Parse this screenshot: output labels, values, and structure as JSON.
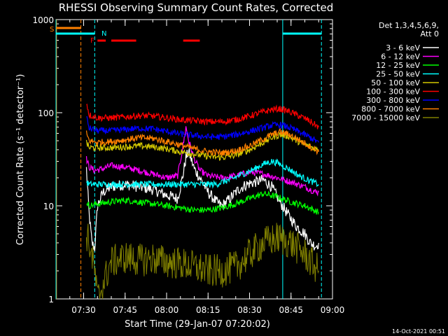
{
  "chart_data": {
    "type": "line",
    "title": "RHESSI Observing Summary Count Rates, Corrected",
    "xlabel": "Start Time (29-Jan-07 07:20:02)",
    "ylabel": "Corrected Count Rate (s⁻¹ detector⁻¹)",
    "yscale": "log",
    "ylim": [
      1,
      1000
    ],
    "xlim_minutes_after_0720": [
      0,
      100
    ],
    "x_ticks": [
      "07:30",
      "07:45",
      "08:00",
      "08:15",
      "08:30",
      "08:45",
      "09:00"
    ],
    "y_ticks": [
      "1",
      "10",
      "100",
      "1000"
    ],
    "legend_header": [
      "Det 1,3,4,5,6,9,",
      "Att 0"
    ],
    "footer_date": "14-Oct-2021 00:51",
    "state_flags": {
      "saa": "S",
      "night": "N",
      "flare": "F"
    },
    "series": [
      {
        "name": "3 - 6 keV",
        "color": "#ffffff",
        "points": [
          [
            11,
            25
          ],
          [
            12,
            8
          ],
          [
            13,
            4
          ],
          [
            14,
            3.5
          ],
          [
            15,
            10
          ],
          [
            17,
            14
          ],
          [
            20,
            16
          ],
          [
            25,
            17
          ],
          [
            30,
            16
          ],
          [
            35,
            15
          ],
          [
            40,
            13
          ],
          [
            44,
            12
          ],
          [
            45,
            16
          ],
          [
            46,
            22
          ],
          [
            47,
            33
          ],
          [
            48,
            38
          ],
          [
            50,
            25
          ],
          [
            52,
            20
          ],
          [
            55,
            14
          ],
          [
            58,
            11
          ],
          [
            60,
            10
          ],
          [
            63,
            12
          ],
          [
            66,
            15
          ],
          [
            69,
            17
          ],
          [
            72,
            18
          ],
          [
            75,
            19
          ],
          [
            78,
            16
          ],
          [
            81,
            11
          ],
          [
            84,
            8
          ],
          [
            87,
            6
          ],
          [
            90,
            5
          ],
          [
            92,
            4
          ],
          [
            94,
            3.7
          ],
          [
            95,
            4
          ]
        ]
      },
      {
        "name": "6 - 12 keV",
        "color": "#ff00ff",
        "points": [
          [
            11,
            32
          ],
          [
            12,
            26
          ],
          [
            14,
            24
          ],
          [
            17,
            25
          ],
          [
            20,
            27
          ],
          [
            25,
            26
          ],
          [
            30,
            24
          ],
          [
            35,
            22
          ],
          [
            40,
            20
          ],
          [
            44,
            21
          ],
          [
            46,
            45
          ],
          [
            47,
            70
          ],
          [
            48,
            50
          ],
          [
            50,
            32
          ],
          [
            52,
            24
          ],
          [
            55,
            21
          ],
          [
            60,
            20
          ],
          [
            65,
            21
          ],
          [
            70,
            23
          ],
          [
            75,
            22
          ],
          [
            80,
            20
          ],
          [
            85,
            18
          ],
          [
            90,
            16
          ],
          [
            94,
            14
          ],
          [
            95,
            14
          ]
        ]
      },
      {
        "name": "12 - 25 keV",
        "color": "#00ff00",
        "points": [
          [
            11,
            11
          ],
          [
            12,
            10
          ],
          [
            15,
            10.5
          ],
          [
            20,
            11
          ],
          [
            25,
            11.5
          ],
          [
            30,
            11
          ],
          [
            35,
            10.5
          ],
          [
            40,
            10
          ],
          [
            45,
            9.5
          ],
          [
            50,
            9
          ],
          [
            55,
            9
          ],
          [
            60,
            9.5
          ],
          [
            65,
            10.5
          ],
          [
            70,
            12
          ],
          [
            75,
            13.5
          ],
          [
            80,
            12.5
          ],
          [
            85,
            11
          ],
          [
            90,
            10
          ],
          [
            95,
            8.5
          ]
        ]
      },
      {
        "name": "25 - 50 keV",
        "color": "#00ffff",
        "points": [
          [
            11,
            18
          ],
          [
            12,
            17
          ],
          [
            15,
            17
          ],
          [
            20,
            17
          ],
          [
            25,
            17
          ],
          [
            30,
            17
          ],
          [
            35,
            17
          ],
          [
            40,
            17
          ],
          [
            45,
            17
          ],
          [
            50,
            17
          ],
          [
            55,
            17
          ],
          [
            58,
            17
          ],
          [
            60,
            18
          ],
          [
            63,
            19
          ],
          [
            66,
            21
          ],
          [
            69,
            23
          ],
          [
            72,
            25
          ],
          [
            75,
            28
          ],
          [
            78,
            30
          ],
          [
            80,
            29
          ],
          [
            82,
            27
          ],
          [
            85,
            24
          ],
          [
            88,
            21
          ],
          [
            91,
            19
          ],
          [
            95,
            17
          ]
        ]
      },
      {
        "name": "50 - 100 keV",
        "color": "#d4c800",
        "points": [
          [
            11,
            48
          ],
          [
            12,
            42
          ],
          [
            15,
            42
          ],
          [
            20,
            42
          ],
          [
            25,
            43
          ],
          [
            30,
            44
          ],
          [
            35,
            43
          ],
          [
            40,
            41
          ],
          [
            45,
            38
          ],
          [
            50,
            36
          ],
          [
            55,
            34
          ],
          [
            60,
            33
          ],
          [
            65,
            35
          ],
          [
            70,
            40
          ],
          [
            75,
            48
          ],
          [
            78,
            54
          ],
          [
            81,
            58
          ],
          [
            84,
            56
          ],
          [
            87,
            50
          ],
          [
            91,
            44
          ],
          [
            95,
            40
          ]
        ]
      },
      {
        "name": "100 - 300 keV",
        "color": "#ff0000",
        "points": [
          [
            11,
            130
          ],
          [
            12,
            95
          ],
          [
            15,
            88
          ],
          [
            20,
            88
          ],
          [
            25,
            90
          ],
          [
            30,
            93
          ],
          [
            35,
            92
          ],
          [
            40,
            88
          ],
          [
            45,
            84
          ],
          [
            50,
            82
          ],
          [
            55,
            80
          ],
          [
            60,
            80
          ],
          [
            65,
            84
          ],
          [
            70,
            92
          ],
          [
            75,
            102
          ],
          [
            78,
            108
          ],
          [
            81,
            110
          ],
          [
            84,
            104
          ],
          [
            87,
            95
          ],
          [
            91,
            84
          ],
          [
            95,
            70
          ]
        ]
      },
      {
        "name": "300 - 800 keV",
        "color": "#0000ff",
        "points": [
          [
            11,
            90
          ],
          [
            12,
            68
          ],
          [
            15,
            64
          ],
          [
            20,
            64
          ],
          [
            25,
            66
          ],
          [
            30,
            68
          ],
          [
            35,
            67
          ],
          [
            40,
            63
          ],
          [
            45,
            59
          ],
          [
            50,
            57
          ],
          [
            55,
            55
          ],
          [
            60,
            55
          ],
          [
            65,
            58
          ],
          [
            70,
            63
          ],
          [
            75,
            69
          ],
          [
            78,
            73
          ],
          [
            81,
            74
          ],
          [
            84,
            70
          ],
          [
            87,
            64
          ],
          [
            91,
            56
          ],
          [
            95,
            48
          ]
        ]
      },
      {
        "name": "800 - 7000 keV",
        "color": "#ff8000",
        "points": [
          [
            11,
            60
          ],
          [
            12,
            50
          ],
          [
            15,
            48
          ],
          [
            20,
            49
          ],
          [
            25,
            51
          ],
          [
            30,
            54
          ],
          [
            35,
            53
          ],
          [
            40,
            49
          ],
          [
            45,
            45
          ],
          [
            50,
            41
          ],
          [
            55,
            38
          ],
          [
            60,
            37
          ],
          [
            65,
            39
          ],
          [
            70,
            44
          ],
          [
            75,
            52
          ],
          [
            78,
            58
          ],
          [
            81,
            62
          ],
          [
            84,
            59
          ],
          [
            87,
            53
          ],
          [
            91,
            45
          ],
          [
            95,
            38
          ]
        ]
      },
      {
        "name": "7000 - 15000 keV",
        "color": "#808000",
        "points": [
          [
            11,
            5
          ],
          [
            12,
            4
          ],
          [
            14,
            2
          ],
          [
            15,
            1
          ],
          [
            20,
            2.5
          ],
          [
            25,
            2.8
          ],
          [
            30,
            2.6
          ],
          [
            35,
            2.7
          ],
          [
            40,
            2.5
          ],
          [
            45,
            2.4
          ],
          [
            50,
            2.2
          ],
          [
            55,
            2
          ],
          [
            60,
            2
          ],
          [
            65,
            2.2
          ],
          [
            70,
            3
          ],
          [
            75,
            4
          ],
          [
            80,
            4.5
          ],
          [
            85,
            4
          ],
          [
            90,
            3
          ],
          [
            95,
            2
          ]
        ]
      }
    ],
    "state_bars": [
      {
        "label": "S",
        "color": "#ff8000",
        "x_start": 0,
        "x_end": 9
      },
      {
        "label": "N",
        "color": "#00ffff",
        "x_start": 0,
        "x_end": 14
      },
      {
        "label": "N",
        "color": "#00ffff",
        "x_start": 82,
        "x_end": 96
      },
      {
        "label": "F",
        "color": "#ff0000",
        "x_start": 15,
        "x_end": 18
      },
      {
        "label": "F",
        "color": "#ff0000",
        "x_start": 20,
        "x_end": 29
      },
      {
        "label": "F",
        "color": "#ff0000",
        "x_start": 46,
        "x_end": 52
      }
    ],
    "state_verticals": [
      {
        "color": "#ff8000",
        "x": 0.2,
        "dashed": false
      },
      {
        "color": "#ff8000",
        "x": 9,
        "dashed": true
      },
      {
        "color": "#00ffff",
        "x": 0,
        "dashed": false
      },
      {
        "color": "#00ffff",
        "x": 14,
        "dashed": true
      },
      {
        "color": "#00ffff",
        "x": 82,
        "dashed": false
      },
      {
        "color": "#00ffff",
        "x": 96,
        "dashed": true
      }
    ]
  }
}
